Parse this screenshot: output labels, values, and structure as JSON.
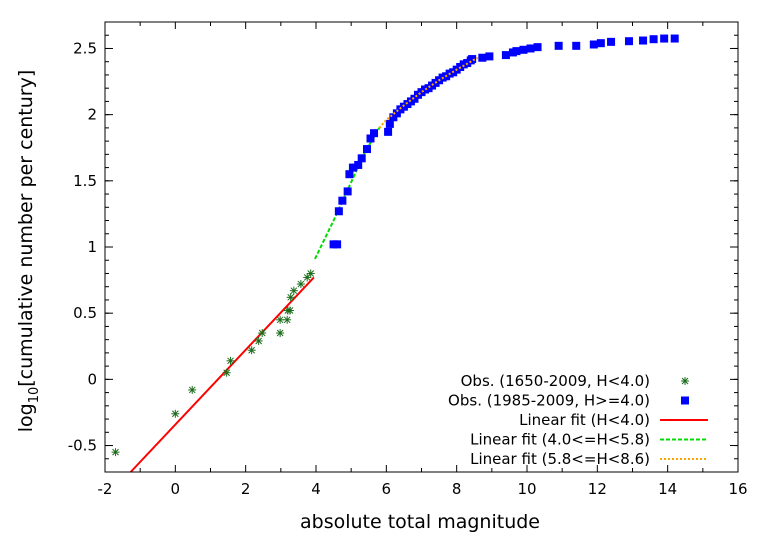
{
  "chart_data": {
    "type": "scatter",
    "xlabel": "absolute total magnitude",
    "ylabel": "log",
    "ylabel_sub": "10",
    "ylabel_rest": "[cumulative number per century]",
    "xlim": [
      -2,
      16
    ],
    "ylim": [
      -0.7,
      2.7
    ],
    "xticks": [
      -2,
      0,
      2,
      4,
      6,
      8,
      10,
      12,
      14,
      16
    ],
    "yticks": [
      -0.5,
      0,
      0.5,
      1,
      1.5,
      2,
      2.5
    ],
    "grid": false,
    "legend_position": "bottom-right",
    "series": [
      {
        "name": "Obs. (1650-2009, H<4.0)",
        "kind": "points",
        "marker": "star",
        "color": "#1a6b1a",
        "points": [
          [
            -1.7,
            -0.55
          ],
          [
            0,
            -0.26
          ],
          [
            0.48,
            -0.08
          ],
          [
            1.46,
            0.05
          ],
          [
            1.57,
            0.14
          ],
          [
            2.17,
            0.22
          ],
          [
            2.37,
            0.29
          ],
          [
            2.47,
            0.35
          ],
          [
            2.98,
            0.35
          ],
          [
            2.98,
            0.45
          ],
          [
            3.18,
            0.45
          ],
          [
            3.2,
            0.52
          ],
          [
            3.26,
            0.52
          ],
          [
            3.28,
            0.62
          ],
          [
            3.37,
            0.67
          ],
          [
            3.57,
            0.72
          ],
          [
            3.75,
            0.77
          ],
          [
            3.85,
            0.8
          ]
        ]
      },
      {
        "name": "Obs. (1985-2009, H>=4.0)",
        "kind": "points",
        "marker": "square",
        "color": "#0000ff",
        "points": [
          [
            4.5,
            1.02
          ],
          [
            4.6,
            1.02
          ],
          [
            4.65,
            1.27
          ],
          [
            4.75,
            1.35
          ],
          [
            4.9,
            1.42
          ],
          [
            4.95,
            1.55
          ],
          [
            5.05,
            1.6
          ],
          [
            5.2,
            1.62
          ],
          [
            5.3,
            1.67
          ],
          [
            5.45,
            1.74
          ],
          [
            5.55,
            1.82
          ],
          [
            5.65,
            1.86
          ],
          [
            6.05,
            1.87
          ],
          [
            6.1,
            1.93
          ],
          [
            6.2,
            1.98
          ],
          [
            6.3,
            2.01
          ],
          [
            6.4,
            2.04
          ],
          [
            6.5,
            2.06
          ],
          [
            6.6,
            2.08
          ],
          [
            6.7,
            2.1
          ],
          [
            6.8,
            2.12
          ],
          [
            6.9,
            2.15
          ],
          [
            7.0,
            2.17
          ],
          [
            7.1,
            2.19
          ],
          [
            7.2,
            2.2
          ],
          [
            7.3,
            2.22
          ],
          [
            7.4,
            2.24
          ],
          [
            7.5,
            2.26
          ],
          [
            7.6,
            2.28
          ],
          [
            7.7,
            2.29
          ],
          [
            7.8,
            2.31
          ],
          [
            7.9,
            2.32
          ],
          [
            8.0,
            2.34
          ],
          [
            8.1,
            2.36
          ],
          [
            8.2,
            2.38
          ],
          [
            8.3,
            2.39
          ],
          [
            8.4,
            2.41
          ],
          [
            8.44,
            2.42
          ],
          [
            8.73,
            2.43
          ],
          [
            8.93,
            2.44
          ],
          [
            9.4,
            2.45
          ],
          [
            9.6,
            2.47
          ],
          [
            9.7,
            2.48
          ],
          [
            9.9,
            2.49
          ],
          [
            10.1,
            2.5
          ],
          [
            10.3,
            2.51
          ],
          [
            10.9,
            2.52
          ],
          [
            11.4,
            2.52
          ],
          [
            11.9,
            2.53
          ],
          [
            12.1,
            2.54
          ],
          [
            12.39,
            2.55
          ],
          [
            12.9,
            2.555
          ],
          [
            13.3,
            2.56
          ],
          [
            13.6,
            2.57
          ],
          [
            13.9,
            2.575
          ],
          [
            14.2,
            2.575
          ]
        ]
      },
      {
        "name": "Linear fit (H<4.0)",
        "kind": "line",
        "style": "solid",
        "color": "#ff0000",
        "points": [
          [
            -1.27,
            -0.7
          ],
          [
            3.94,
            0.77
          ]
        ]
      },
      {
        "name": "Linear fit (4.0<=H<5.8)",
        "kind": "line",
        "style": "dashed",
        "color": "#00dd00",
        "points": [
          [
            3.97,
            0.91
          ],
          [
            4.5,
            1.2
          ],
          [
            5.0,
            1.49
          ],
          [
            5.4,
            1.72
          ],
          [
            5.8,
            1.9
          ]
        ]
      },
      {
        "name": "Linear fit (5.8<=H<8.6)",
        "kind": "line",
        "style": "dotted",
        "color": "#ffa500",
        "points": [
          [
            5.8,
            1.9
          ],
          [
            6.0,
            1.96
          ],
          [
            6.5,
            2.07
          ],
          [
            7.0,
            2.17
          ],
          [
            7.5,
            2.26
          ],
          [
            8.0,
            2.34
          ],
          [
            8.6,
            2.43
          ]
        ]
      }
    ]
  }
}
